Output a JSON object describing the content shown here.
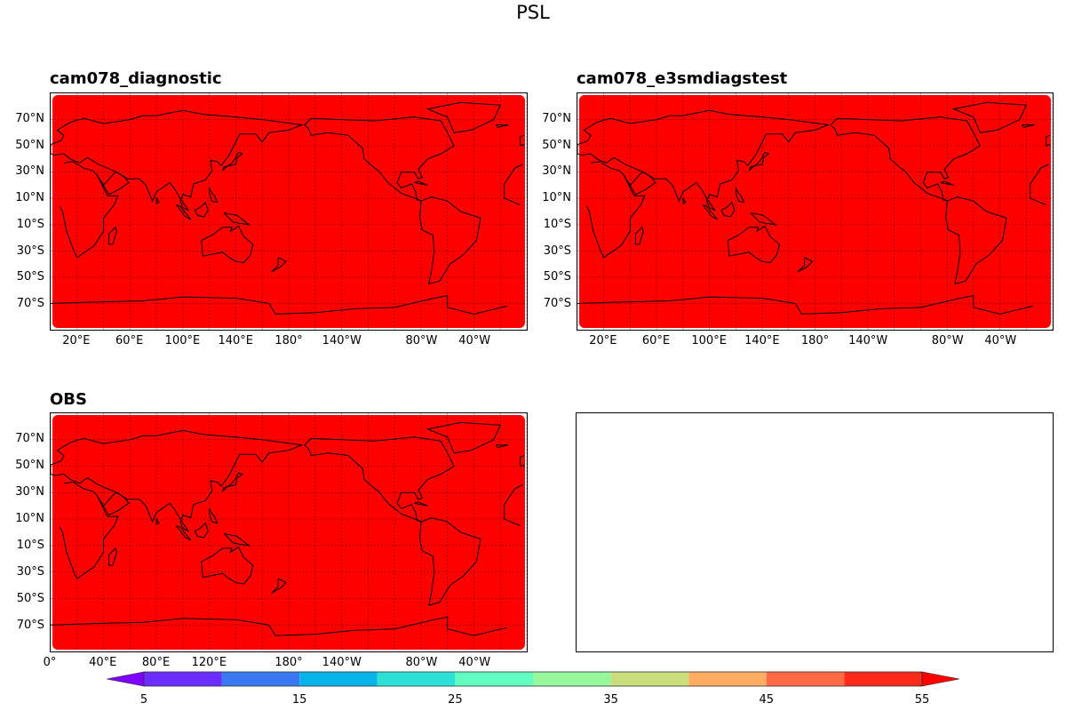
{
  "figure_title": "PSL",
  "panels": [
    {
      "id": "p1",
      "title": "cam078_diagnostic",
      "filled": true,
      "y_ticks": [
        "70°N",
        "50°N",
        "30°N",
        "10°N",
        "10°S",
        "30°S",
        "50°S",
        "70°S"
      ],
      "x_ticks": [
        "20°E",
        "60°E",
        "100°E",
        "140°E",
        "180°",
        "140°W",
        "80°W",
        "40°W"
      ]
    },
    {
      "id": "p2",
      "title": "cam078_e3smdiagstest",
      "filled": true,
      "y_ticks": [
        "70°N",
        "50°N",
        "30°N",
        "10°N",
        "10°S",
        "30°S",
        "50°S",
        "70°S"
      ],
      "x_ticks": [
        "20°E",
        "60°E",
        "100°E",
        "140°E",
        "180°",
        "140°W",
        "80°W",
        "40°W"
      ]
    },
    {
      "id": "p3",
      "title": "OBS",
      "filled": true,
      "y_ticks": [
        "70°N",
        "50°N",
        "30°N",
        "10°N",
        "10°S",
        "30°S",
        "50°S",
        "70°S"
      ],
      "x_ticks": [
        "0°",
        "40°E",
        "80°E",
        "120°E",
        "180°",
        "140°W",
        "80°W",
        "40°W"
      ]
    },
    {
      "id": "p4",
      "title": "",
      "filled": false,
      "y_ticks": [],
      "x_ticks": []
    }
  ],
  "fill_color": "#ff0000",
  "coastline_color": "#000000",
  "colorbar": {
    "range": [
      5,
      55
    ],
    "extend": "both",
    "tick_labels": [
      "5",
      "15",
      "25",
      "35",
      "45",
      "55"
    ],
    "bins": [
      {
        "from": 5,
        "to": 10,
        "color": "#6a2cff"
      },
      {
        "from": 10,
        "to": 15,
        "color": "#3a78f2"
      },
      {
        "from": 15,
        "to": 20,
        "color": "#07b4ea"
      },
      {
        "from": 20,
        "to": 25,
        "color": "#2ce0d8"
      },
      {
        "from": 25,
        "to": 30,
        "color": "#62fbc0"
      },
      {
        "from": 30,
        "to": 35,
        "color": "#96f79d"
      },
      {
        "from": 35,
        "to": 40,
        "color": "#cade7e"
      },
      {
        "from": 40,
        "to": 45,
        "color": "#feac64"
      },
      {
        "from": 45,
        "to": 50,
        "color": "#ff6a45"
      },
      {
        "from": 50,
        "to": 55,
        "color": "#ff2a1c"
      }
    ],
    "under_color": "#8000ff",
    "over_color": "#ff0000"
  }
}
